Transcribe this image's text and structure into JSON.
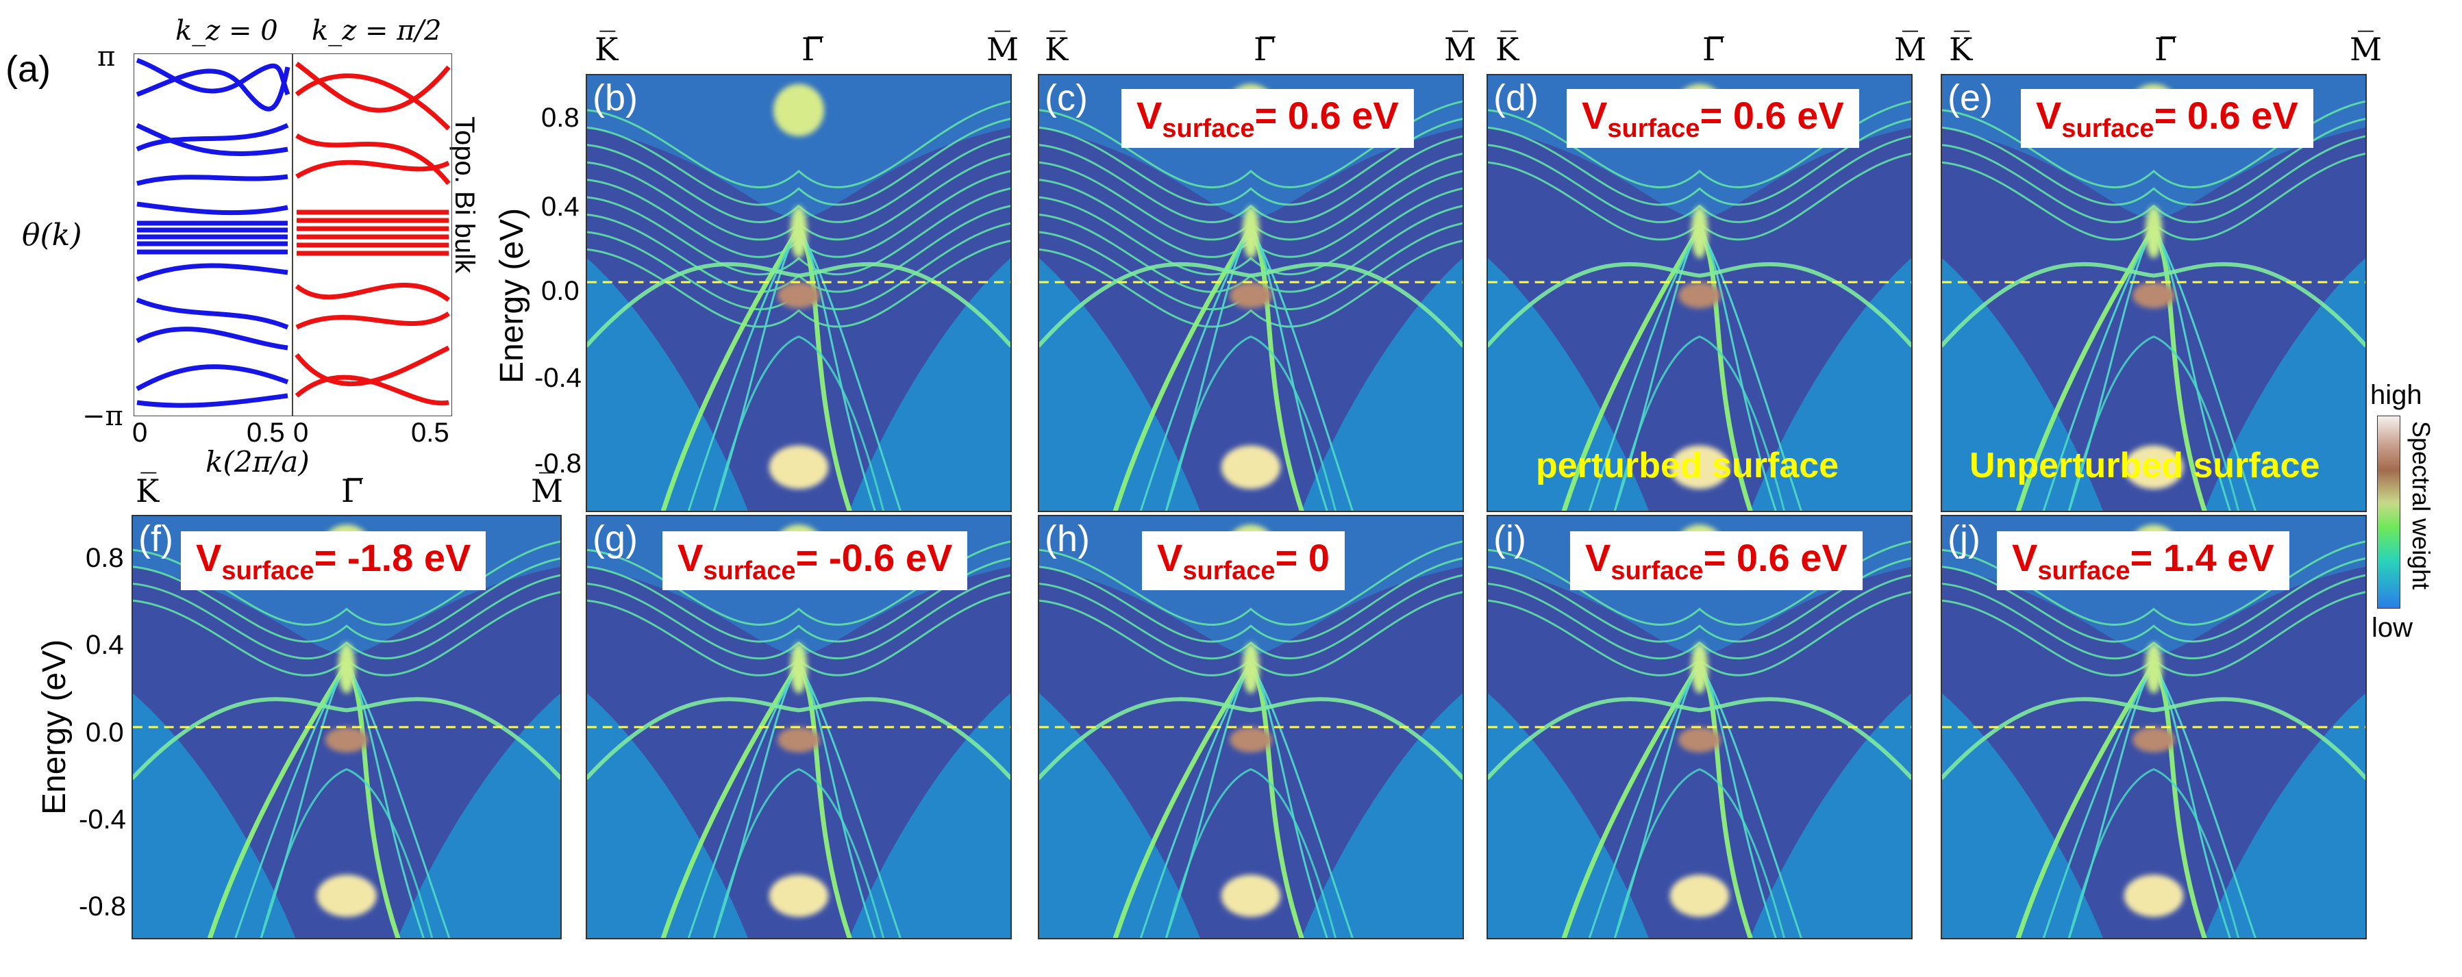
{
  "panel_a": {
    "label": "(a)",
    "title_left": "k_z = 0",
    "title_right": "k_z = π/2",
    "ylabel": "θ(k)",
    "xlabel": "k(2π/a)",
    "y_ticks": [
      "π",
      "−π"
    ],
    "x_ticks": [
      "0",
      "0.5",
      "0",
      "0.5"
    ],
    "side_text": "Topo. Bi bulk",
    "colors": {
      "left": "#1515e8",
      "right": "#ee1111"
    }
  },
  "axes": {
    "ylabel": "Energy (eV)",
    "y_ticks": [
      "0.8",
      "0.4",
      "0.0",
      "-0.4",
      "-0.8"
    ],
    "k_labels": [
      "K̅",
      "Γ̅",
      "M̅"
    ]
  },
  "panels": [
    {
      "label": "(b)",
      "vsurface": "",
      "note": ""
    },
    {
      "label": "(c)",
      "vsurface": "= 0.6 eV",
      "note": ""
    },
    {
      "label": "(d)",
      "vsurface": "= 0.6 eV",
      "note": "perturbed surface"
    },
    {
      "label": "(e)",
      "vsurface": "= 0.6 eV",
      "note": "Unperturbed surface"
    },
    {
      "label": "(f)",
      "vsurface": "= -1.8 eV",
      "note": ""
    },
    {
      "label": "(g)",
      "vsurface": "= -0.6 eV",
      "note": ""
    },
    {
      "label": "(h)",
      "vsurface": "= 0",
      "note": ""
    },
    {
      "label": "(i)",
      "vsurface": "= 0.6 eV",
      "note": ""
    },
    {
      "label": "(j)",
      "vsurface": "= 1.4 eV",
      "note": ""
    }
  ],
  "vsurface_prefix": "V",
  "vsurface_sub": "surface",
  "colorbar": {
    "high": "high",
    "low": "low",
    "label": "Spectral weight"
  },
  "fermi_line_color": "#ffff40"
}
